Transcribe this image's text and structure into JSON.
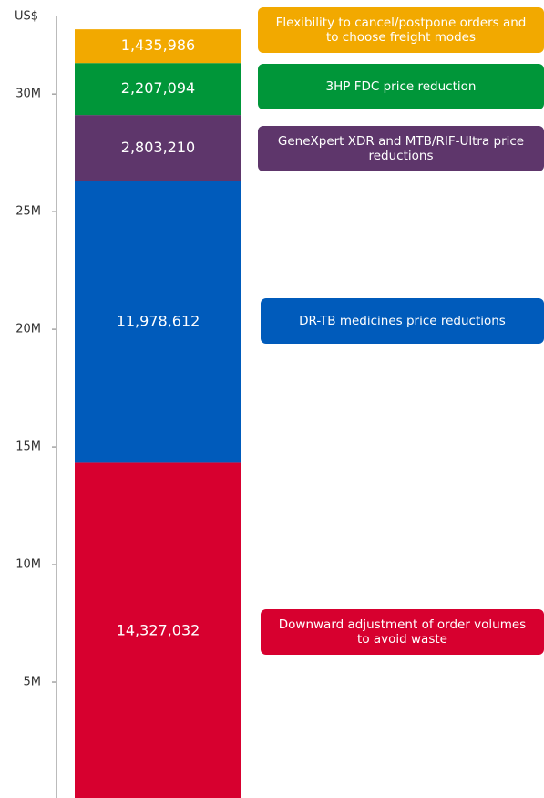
{
  "chart_data": {
    "type": "stacked-bar",
    "y_label": "US$",
    "series": [
      {
        "name": "Downward adjustment of order volumes to avoid waste",
        "color": "#d7002f",
        "values": [
          14327032
        ],
        "value_labels": [
          "14,327,032"
        ]
      },
      {
        "name": "DR-TB medicines price reductions",
        "color": "#005bbb",
        "values": [
          11978612
        ],
        "value_labels": [
          "11,978,612"
        ]
      },
      {
        "name": "GeneXpert XDR and MTB/RIF-Ultra price reductions",
        "color": "#5e366b",
        "values": [
          2803210
        ],
        "value_labels": [
          "2,803,210"
        ]
      },
      {
        "name": "3HP FDC price reduction",
        "color": "#009639",
        "values": [
          2207094
        ],
        "value_labels": [
          "2,207,094"
        ]
      },
      {
        "name": "Flexibility to cancel/postpone orders and to choose freight modes",
        "color": "#f2a900",
        "values": [
          1435986
        ],
        "value_labels": [
          "1,435,986"
        ]
      }
    ],
    "ylim": [
      0,
      33300000
    ],
    "yticks": [
      {
        "value": 5000000,
        "label": "5M"
      },
      {
        "value": 10000000,
        "label": "10M"
      },
      {
        "value": 15000000,
        "label": "15M"
      },
      {
        "value": 20000000,
        "label": "20M"
      },
      {
        "value": 25000000,
        "label": "25M"
      },
      {
        "value": 30000000,
        "label": "30M"
      }
    ]
  }
}
